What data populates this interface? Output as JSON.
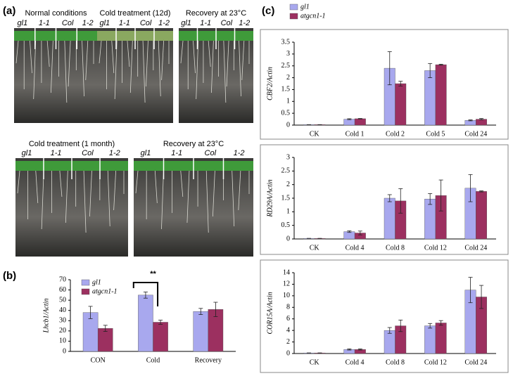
{
  "panels": {
    "a": {
      "label": "(a)",
      "photos": [
        {
          "caption": "Normal conditions",
          "genotypes": [
            "gl1",
            "1-1",
            "Col",
            "1-2"
          ]
        },
        {
          "caption": "Cold treatment (12d)",
          "genotypes": [
            "gl1",
            "1-1",
            "Col",
            "1-2"
          ]
        },
        {
          "caption": "Recovery at 23°C",
          "genotypes": [
            "gl1",
            "1-1",
            "Col",
            "1-2"
          ]
        },
        {
          "caption": "Cold treatment (1 month)",
          "genotypes": [
            "gl1",
            "1-1",
            "Col",
            "1-2"
          ]
        },
        {
          "caption": "Recovery at 23°C",
          "genotypes": [
            "gl1",
            "1-1",
            "Col",
            "1-2"
          ]
        }
      ]
    },
    "b": {
      "label": "(b)"
    },
    "c": {
      "label": "(c)"
    }
  },
  "chart_data": [
    {
      "type": "bar",
      "y_label": "Lhcb1/Actin",
      "annotation": "**",
      "categories": [
        "CON",
        "Cold",
        "Recovery"
      ],
      "series": [
        {
          "name": "gl1",
          "color": "#a8a8ee",
          "values": [
            38,
            55,
            39
          ],
          "errors": [
            6,
            3,
            3
          ]
        },
        {
          "name": "atgcn1-1",
          "color": "#9c3060",
          "values": [
            22.5,
            28.5,
            41
          ],
          "errors": [
            3,
            2,
            7
          ]
        }
      ],
      "ylim": [
        0,
        70
      ],
      "yticks": [
        0,
        10,
        20,
        30,
        40,
        50,
        60,
        70
      ]
    },
    {
      "type": "bar",
      "y_label": "CBF2/Actin",
      "categories": [
        "CK",
        "Cold 1",
        "Cold 2",
        "Cold 5",
        "Cold 24"
      ],
      "series": [
        {
          "name": "gl1",
          "color": "#a8a8ee",
          "values": [
            0.02,
            0.25,
            2.4,
            2.3,
            0.2
          ],
          "errors": [
            0,
            0.02,
            0.7,
            0.3,
            0.02
          ]
        },
        {
          "name": "atgcn1-1",
          "color": "#9c3060",
          "values": [
            0.02,
            0.27,
            1.75,
            2.55,
            0.25
          ],
          "errors": [
            0,
            0.01,
            0.1,
            0.02,
            0.03
          ]
        }
      ],
      "ylim": [
        0,
        3.5
      ],
      "yticks": [
        0,
        0.5,
        1,
        1.5,
        2,
        2.5,
        3,
        3.5
      ]
    },
    {
      "type": "bar",
      "y_label": "RD29A/Actin",
      "categories": [
        "CK",
        "Cold 4",
        "Cold 8",
        "Cold 12",
        "Cold 24"
      ],
      "series": [
        {
          "color": "#a8a8ee",
          "values": [
            0.02,
            0.27,
            1.5,
            1.47,
            1.87
          ],
          "errors": [
            0,
            0.03,
            0.13,
            0.2,
            0.5
          ]
        },
        {
          "color": "#9c3060",
          "values": [
            0.02,
            0.22,
            1.4,
            1.6,
            1.75
          ],
          "errors": [
            0,
            0.07,
            0.45,
            0.57,
            0.02
          ]
        }
      ],
      "ylim": [
        0,
        3
      ],
      "yticks": [
        0,
        0.5,
        1,
        1.5,
        2,
        2.5,
        3
      ]
    },
    {
      "type": "bar",
      "y_label": "COR15A/Actin",
      "categories": [
        "CK",
        "Cold 4",
        "Cold 8",
        "Cold 12",
        "Cold 24"
      ],
      "series": [
        {
          "color": "#a8a8ee",
          "values": [
            0.1,
            0.7,
            4,
            4.8,
            11
          ],
          "errors": [
            0,
            0.1,
            0.5,
            0.4,
            2.2
          ]
        },
        {
          "color": "#9c3060",
          "values": [
            0.1,
            0.7,
            4.8,
            5.3,
            9.8
          ],
          "errors": [
            0,
            0.1,
            1,
            0.4,
            2
          ]
        }
      ],
      "ylim": [
        0,
        14
      ],
      "yticks": [
        0,
        2,
        4,
        6,
        8,
        10,
        12,
        14
      ]
    }
  ]
}
